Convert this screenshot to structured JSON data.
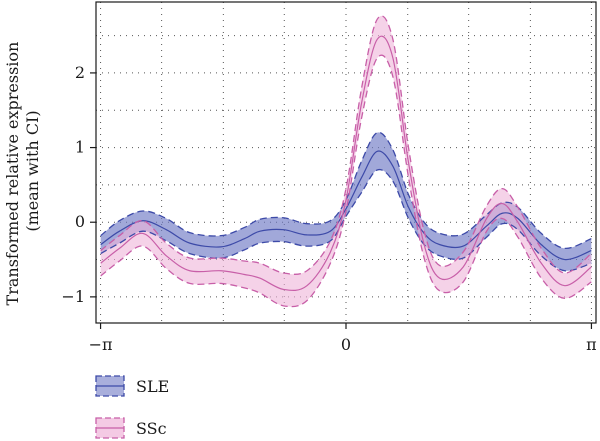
{
  "chart_data": {
    "type": "line",
    "xlabel": "",
    "ylabel_lines": [
      "Transformed relative expression",
      "(mean with CI)"
    ],
    "xlim": [
      -3.2,
      3.2
    ],
    "ylim": [
      -1.35,
      2.95
    ],
    "x_ticks": [
      {
        "value": -3.14159,
        "label": "−π"
      },
      {
        "value": 0,
        "label": "0"
      },
      {
        "value": 3.14159,
        "label": "π"
      }
    ],
    "y_ticks": [
      {
        "value": -1,
        "label": "−1"
      },
      {
        "value": 0,
        "label": "0"
      },
      {
        "value": 1,
        "label": "1"
      },
      {
        "value": 2,
        "label": "2"
      }
    ],
    "x_grid": [
      -2.36,
      -1.57,
      -0.79,
      0.79,
      1.57,
      2.36
    ],
    "y_grid": [
      -0.5,
      0.5,
      1.5,
      2.5
    ],
    "grid": "dotted",
    "legend_position": "bottom-left",
    "x": [
      -3.14,
      -2.9,
      -2.6,
      -2.3,
      -2.0,
      -1.6,
      -1.3,
      -1.1,
      -0.8,
      -0.5,
      -0.2,
      0.0,
      0.2,
      0.4,
      0.6,
      0.8,
      1.0,
      1.2,
      1.5,
      1.8,
      2.0,
      2.2,
      2.5,
      2.8,
      3.14
    ],
    "series": [
      {
        "name": "SLE",
        "color": "#3d4aa8",
        "fill": "#6f79c4",
        "mean": [
          -0.3,
          -0.12,
          0.02,
          -0.1,
          -0.28,
          -0.33,
          -0.22,
          -0.12,
          -0.1,
          -0.17,
          -0.12,
          0.18,
          0.6,
          0.95,
          0.75,
          0.2,
          -0.15,
          -0.3,
          -0.32,
          -0.05,
          0.12,
          0.05,
          -0.3,
          -0.5,
          -0.38
        ],
        "lower": [
          -0.42,
          -0.28,
          -0.12,
          -0.25,
          -0.42,
          -0.48,
          -0.37,
          -0.28,
          -0.26,
          -0.32,
          -0.25,
          0.08,
          0.4,
          0.7,
          0.55,
          0.05,
          -0.3,
          -0.45,
          -0.48,
          -0.2,
          -0.02,
          -0.1,
          -0.45,
          -0.65,
          -0.55
        ],
        "upper": [
          -0.18,
          0.02,
          0.15,
          0.05,
          -0.14,
          -0.18,
          -0.07,
          0.04,
          0.06,
          -0.02,
          0.02,
          0.3,
          0.82,
          1.2,
          0.97,
          0.37,
          0.0,
          -0.15,
          -0.16,
          0.1,
          0.26,
          0.2,
          -0.15,
          -0.35,
          -0.22
        ]
      },
      {
        "name": "SSc",
        "color": "#c85fa8",
        "fill": "#efb4d8",
        "mean": [
          -0.55,
          -0.35,
          -0.15,
          -0.45,
          -0.65,
          -0.65,
          -0.7,
          -0.75,
          -0.9,
          -0.85,
          -0.4,
          0.3,
          1.6,
          2.45,
          2.2,
          0.8,
          -0.3,
          -0.75,
          -0.6,
          0.05,
          0.25,
          0.0,
          -0.55,
          -0.85,
          -0.6
        ],
        "lower": [
          -0.72,
          -0.52,
          -0.32,
          -0.62,
          -0.82,
          -0.82,
          -0.88,
          -0.95,
          -1.12,
          -1.05,
          -0.55,
          0.15,
          1.4,
          2.2,
          1.95,
          0.6,
          -0.48,
          -0.92,
          -0.8,
          -0.12,
          0.05,
          -0.2,
          -0.75,
          -1.02,
          -0.8
        ],
        "upper": [
          -0.38,
          -0.18,
          0.02,
          -0.28,
          -0.48,
          -0.48,
          -0.52,
          -0.55,
          -0.68,
          -0.65,
          -0.25,
          0.45,
          1.8,
          2.72,
          2.45,
          1.0,
          -0.12,
          -0.58,
          -0.4,
          0.22,
          0.45,
          0.2,
          -0.35,
          -0.68,
          -0.42
        ]
      }
    ]
  }
}
